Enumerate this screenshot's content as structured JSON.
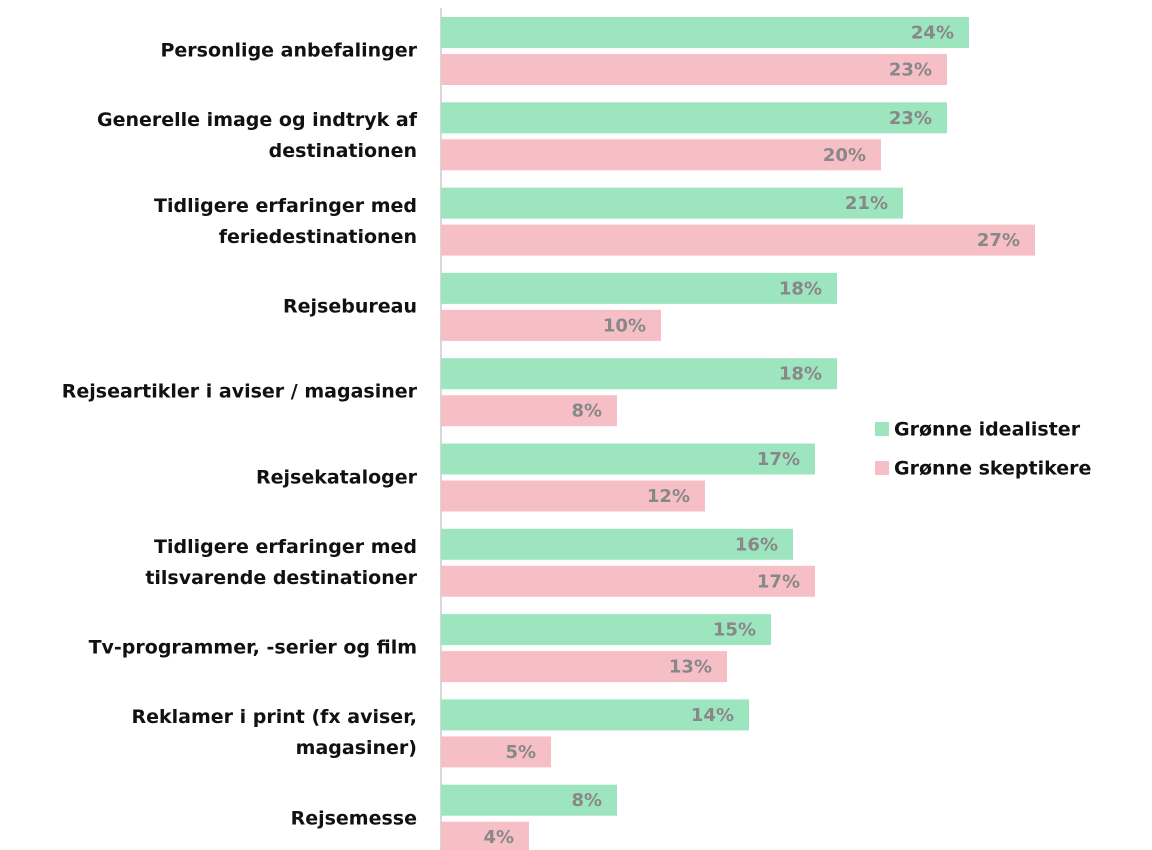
{
  "chart_data": {
    "type": "bar",
    "orientation": "horizontal",
    "categories": [
      "Personlige anbefalinger",
      "Generelle image og indtryk af\ndestinationen",
      "Tidligere erfaringer med\nferiedestinationen",
      "Rejsebureau",
      "Rejseartikler i aviser / magasiner",
      "Rejsekataloger",
      "Tidligere erfaringer med\ntilsvarende destinationer",
      "Tv-programmer, -serier og film",
      "Reklamer i print (fx aviser,\nmagasiner)",
      "Rejsemesse"
    ],
    "series": [
      {
        "name": "Grønne idealister",
        "color": "#9de5bf",
        "values": [
          24,
          23,
          21,
          18,
          18,
          17,
          16,
          15,
          14,
          8
        ],
        "value_labels": [
          "24%",
          "23%",
          "21%",
          "18%",
          "18%",
          "17%",
          "16%",
          "15%",
          "14%",
          "8%"
        ]
      },
      {
        "name": "Grønne skeptikere",
        "color": "#f6bfc6",
        "values": [
          23,
          20,
          27,
          10,
          8,
          12,
          17,
          13,
          5,
          4
        ],
        "value_labels": [
          "23%",
          "20%",
          "27%",
          "10%",
          "8%",
          "12%",
          "17%",
          "13%",
          "5%",
          "4%"
        ]
      }
    ],
    "xlim": [
      0,
      27
    ],
    "legend": "right"
  }
}
